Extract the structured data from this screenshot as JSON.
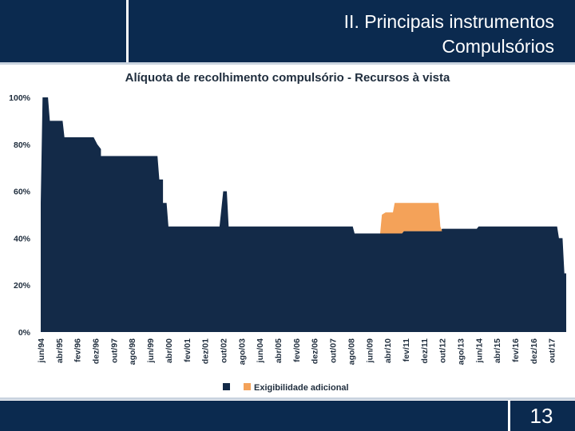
{
  "header": {
    "title_line1": "II. Principais instrumentos",
    "title_line2": "Compulsórios"
  },
  "footer": {
    "page_number": "13"
  },
  "colors": {
    "base": "#132a48",
    "additional": "#f4a259",
    "header_bg": "#0b2a4f"
  },
  "chart_data": {
    "type": "area",
    "title": "Alíquota de recolhimento compulsório - Recursos à vista",
    "xlabel": "",
    "ylabel": "",
    "ylim": [
      0,
      100
    ],
    "y_ticks": [
      "0%",
      "20%",
      "40%",
      "60%",
      "80%",
      "100%"
    ],
    "x_ticks": [
      "jun/94",
      "abr/95",
      "fev/96",
      "dez/96",
      "out/97",
      "ago/98",
      "jun/99",
      "abr/00",
      "fev/01",
      "dez/01",
      "out/02",
      "ago/03",
      "jun/04",
      "abr/05",
      "fev/06",
      "dez/06",
      "out/07",
      "ago/08",
      "jun/09",
      "abr/10",
      "fev/11",
      "dez/11",
      "out/12",
      "ago/13",
      "jun/14",
      "abr/15",
      "fev/16",
      "dez/16",
      "out/17"
    ],
    "grid": false,
    "legend_position": "bottom",
    "series": [
      {
        "name": "",
        "color": "#132a48",
        "points": [
          [
            "jun/94",
            0
          ],
          [
            "jun/94",
            55
          ],
          [
            "jul/94",
            100
          ],
          [
            "out/94",
            100
          ],
          [
            "nov/94",
            90
          ],
          [
            "jun/95",
            90
          ],
          [
            "jul/95",
            83
          ],
          [
            "nov/96",
            83
          ],
          [
            "jan/97",
            80
          ],
          [
            "mar/97",
            78
          ],
          [
            "mar/97",
            75
          ],
          [
            "out/99",
            75
          ],
          [
            "nov/99",
            65
          ],
          [
            "jan/00",
            65
          ],
          [
            "jan/00",
            55
          ],
          [
            "mar/00",
            55
          ],
          [
            "abr/00",
            45
          ],
          [
            "ago/02",
            45
          ],
          [
            "out/02",
            60
          ],
          [
            "dez/02",
            60
          ],
          [
            "jan/03",
            45
          ],
          [
            "set/08",
            45
          ],
          [
            "out/08",
            42
          ],
          [
            "dez/10",
            42
          ],
          [
            "jan/11",
            43
          ],
          [
            "set/12",
            43
          ],
          [
            "out/12",
            44
          ],
          [
            "mai/14",
            44
          ],
          [
            "jun/14",
            45
          ],
          [
            "jan/18",
            45
          ],
          [
            "fev/18",
            40
          ],
          [
            "abr/18",
            40
          ],
          [
            "mai/18",
            25
          ],
          [
            "jun/18",
            25
          ],
          [
            "jun/18",
            0
          ]
        ]
      },
      {
        "name": "Exigibilidade adicional",
        "color": "#f4a259",
        "top": [
          [
            "dez/09",
            42
          ],
          [
            "jan/10",
            50
          ],
          [
            "mar/10",
            51
          ],
          [
            "jul/10",
            51
          ],
          [
            "ago/10",
            55
          ],
          [
            "ago/12",
            55
          ],
          [
            "set/12",
            45
          ],
          [
            "out/12",
            43
          ]
        ],
        "bottom": [
          [
            "dez/09",
            42
          ],
          [
            "dez/10",
            42
          ],
          [
            "jan/11",
            43
          ],
          [
            "out/12",
            43
          ]
        ]
      }
    ]
  }
}
